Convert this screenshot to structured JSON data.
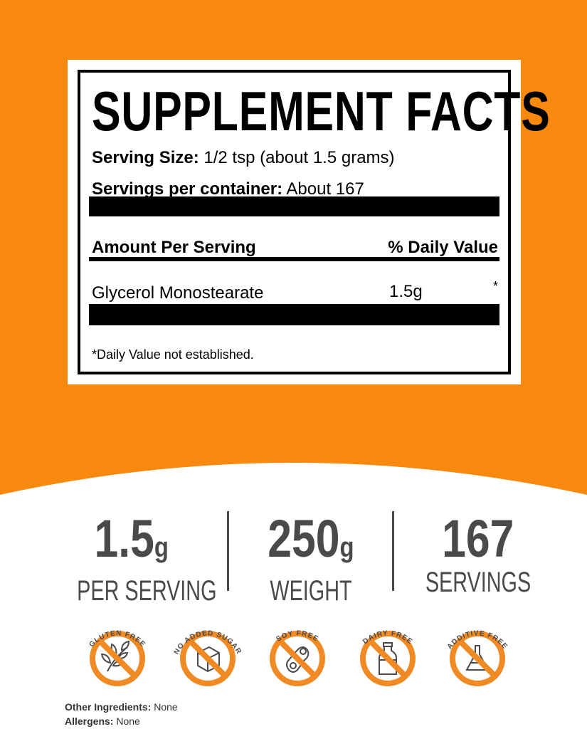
{
  "colors": {
    "orange": "#f7890f",
    "icon_orange": "#f08a24",
    "gray": "#4a4a4a"
  },
  "facts": {
    "title": "SUPPLEMENT FACTS",
    "serving_size_label": "Serving Size:",
    "serving_size_value": "1/2 tsp (about 1.5 grams)",
    "servings_label": "Servings per container:",
    "servings_value": "About 167",
    "amount_header": "Amount Per Serving",
    "dv_header": "% Daily Value",
    "ingredient": {
      "name": "Glycerol Monostearate",
      "amount": "1.5g",
      "dv": "*"
    },
    "footnote": "*Daily Value not established."
  },
  "stats": [
    {
      "value": "1.5",
      "unit": "g",
      "caption": "PER SERVING"
    },
    {
      "value": "250",
      "unit": "g",
      "caption": "WEIGHT"
    },
    {
      "value": "167",
      "unit": "",
      "caption": "SERVINGS"
    }
  ],
  "badges": [
    {
      "label": "GLUTEN FREE",
      "icon": "wheat-icon"
    },
    {
      "label": "NO ADDED SUGAR",
      "icon": "sugar-cube-icon"
    },
    {
      "label": "SOY FREE",
      "icon": "soybean-icon"
    },
    {
      "label": "DAIRY FREE",
      "icon": "milk-bottle-icon"
    },
    {
      "label": "ADDITIVE FREE",
      "icon": "flask-icon"
    }
  ],
  "info": {
    "other_label": "Other Ingredients:",
    "other_value": "None",
    "allergens_label": "Allergens:",
    "allergens_value": "None"
  }
}
